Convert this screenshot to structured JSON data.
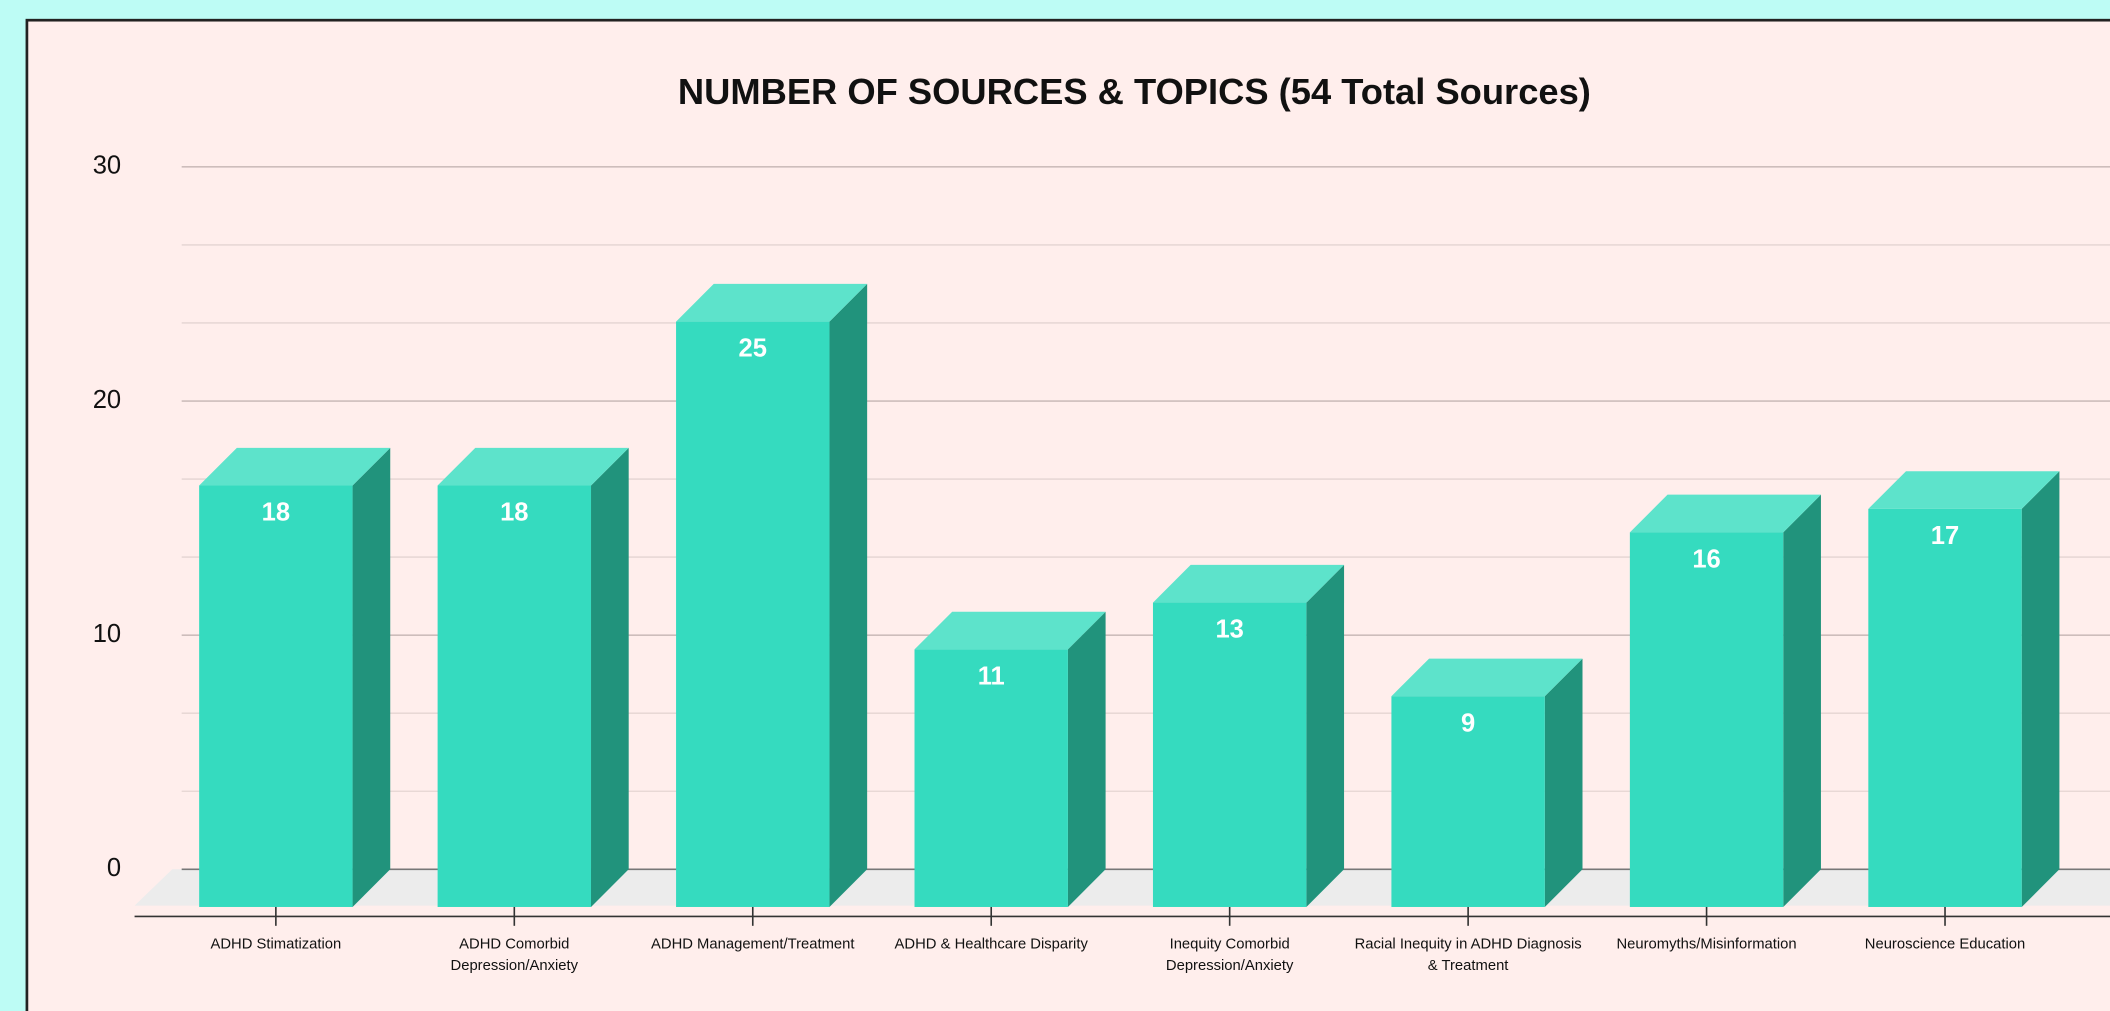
{
  "chart_data": {
    "type": "bar3d",
    "title": "NUMBER OF SOURCES & TOPICS (54 Total Sources)",
    "categories": [
      "ADHD Stimatization",
      "ADHD Comorbid Depression/Anxiety",
      "ADHD Management/Treatment",
      "ADHD & Healthcare Disparity",
      "Inequity Comorbid Depression/Anxiety",
      "Racial Inequity in ADHD Diagnosis & Treatment",
      "Neuromyths/Misinformation",
      "Neuroscience Education"
    ],
    "values": [
      18,
      18,
      25,
      11,
      13,
      9,
      16,
      17
    ],
    "color": "#35dbbf",
    "ylim": [
      0,
      30
    ],
    "yticks": [
      0,
      10,
      20,
      30
    ],
    "grid": true
  }
}
